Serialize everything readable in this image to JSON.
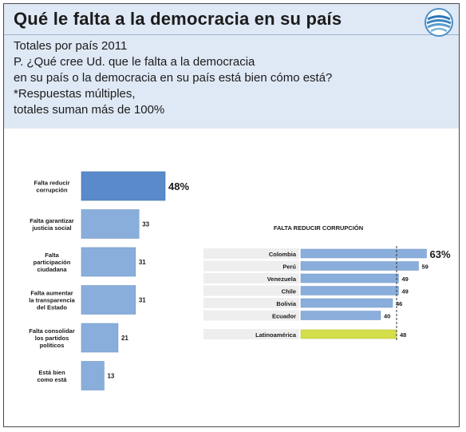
{
  "header": {
    "title": "Qué le falta a la democracia en su país",
    "line1": "Totales por país 2011",
    "line2": "P. ¿Qué cree Ud. que le falta a la democracia",
    "line3": "en su país o la democracia en su país está bien cómo está?",
    "line4": "*Respuestas múltiples,",
    "line5": "totales suman más de 100%"
  },
  "colors": {
    "header_bg": "#dfe8f5",
    "bar_main": "#8aaedc",
    "bar_highlight": "#5b8acb",
    "bar_latam": "#d4de4a",
    "row_bg": "#eeeeee"
  },
  "chart_data": [
    {
      "type": "bar",
      "orientation": "horizontal",
      "categories": [
        [
          "Falta reducir",
          "corrupción"
        ],
        [
          "Falta garantizar",
          "justicia social"
        ],
        [
          "Falta",
          "participación",
          "ciudadana"
        ],
        [
          "Falta aumentar",
          "la transparencia",
          "del Estado"
        ],
        [
          "Falta consolidar",
          "los partidos",
          "políticos"
        ],
        [
          "Está bien",
          "como está"
        ]
      ],
      "values": [
        48,
        33,
        31,
        31,
        21,
        13
      ],
      "value_labels": [
        "48%",
        "33",
        "31",
        "31",
        "21",
        "13"
      ],
      "highlight_index": 0
    },
    {
      "type": "bar",
      "orientation": "horizontal",
      "title": "FALTA REDUCIR CORRUPCIÓN",
      "categories": [
        "Colombia",
        "Perú",
        "Venezuela",
        "Chile",
        "Bolivia",
        "Ecuador",
        "Latinoamérica"
      ],
      "values": [
        63,
        59,
        49,
        49,
        46,
        40,
        48
      ],
      "value_labels": [
        "63%",
        "59",
        "49",
        "49",
        "46",
        "40",
        "48"
      ],
      "reference_value": 48,
      "highlight_category": "Latinoamérica"
    }
  ]
}
